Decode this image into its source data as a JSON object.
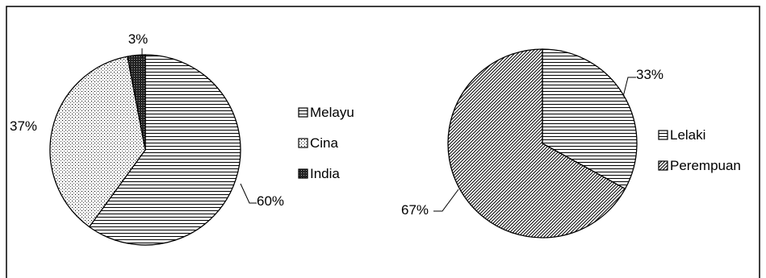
{
  "chart_data": [
    {
      "type": "pie",
      "title": "",
      "categories": [
        "Melayu",
        "Cina",
        "India"
      ],
      "values": [
        60,
        37,
        3
      ],
      "value_labels": [
        "60%",
        "37%",
        "3%"
      ],
      "patterns": [
        "horizontal-lines",
        "dots",
        "dark-crosshatch"
      ],
      "legend": {
        "position": "right",
        "entries": [
          "Melayu",
          "Cina",
          "India"
        ]
      }
    },
    {
      "type": "pie",
      "title": "",
      "categories": [
        "Lelaki",
        "Perempuan"
      ],
      "values": [
        33,
        67
      ],
      "value_labels": [
        "33%",
        "67%"
      ],
      "patterns": [
        "horizontal-lines",
        "diagonal-lines"
      ],
      "legend": {
        "position": "right",
        "entries": [
          "Lelaki",
          "Perempuan"
        ]
      }
    }
  ],
  "colors": {
    "outline": "#000000",
    "background": "#ffffff"
  }
}
